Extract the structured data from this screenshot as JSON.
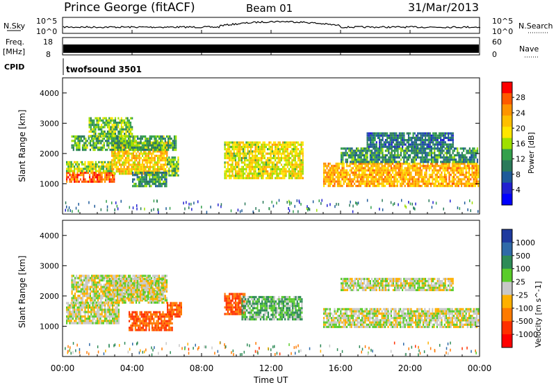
{
  "header": {
    "station": "Prince George (fitACF)",
    "beam": "Beam 01",
    "date": "31/Mar/2013"
  },
  "noise_panel": {
    "left_label": "N.Sky",
    "left_ticks": [
      "10^5",
      "10^0"
    ],
    "right_label": "N.Search",
    "right_ticks": [
      "10^5",
      "10^0"
    ]
  },
  "freq_panel": {
    "left_label_1": "Freq.",
    "left_label_2": "[MHz]",
    "left_ticks": [
      "18",
      "8"
    ],
    "right_label": "Nave",
    "right_ticks": [
      "60",
      "0"
    ]
  },
  "cpid": {
    "label": "CPID",
    "program": "twofsound 3501"
  },
  "chart_data": [
    {
      "type": "heatmap",
      "title": "",
      "ylabel": "Slant Range [km]",
      "xlabel": "",
      "x_range_hours": [
        0,
        24
      ],
      "ylim": [
        0,
        4500
      ],
      "yticks": [
        "4000",
        "3000",
        "2000",
        "1000"
      ],
      "colorbar": {
        "label": "Power [dB]",
        "ticks": [
          "28",
          "24",
          "20",
          "16",
          "12",
          "8",
          "4"
        ],
        "colors": [
          "#ff0000",
          "#ff5a00",
          "#ff9400",
          "#ffbf00",
          "#ffe600",
          "#9fe000",
          "#33a04b",
          "#2a7a5a",
          "#1d5a9a",
          "#2020d0",
          "#0000ff"
        ]
      },
      "echo_regions": [
        {
          "t0": 0.2,
          "t1": 3.0,
          "r0": 1050,
          "r1": 1400,
          "level": 26
        },
        {
          "t0": 0.2,
          "t1": 3.0,
          "r0": 1400,
          "r1": 1750,
          "level": 16
        },
        {
          "t0": 2.8,
          "t1": 6.0,
          "r0": 1300,
          "r1": 2400,
          "level": 20
        },
        {
          "t0": 0.5,
          "t1": 6.5,
          "r0": 2100,
          "r1": 2600,
          "level": 12
        },
        {
          "t0": 1.5,
          "t1": 4.0,
          "r0": 2600,
          "r1": 3200,
          "level": 14
        },
        {
          "t0": 4.0,
          "t1": 6.0,
          "r0": 900,
          "r1": 1400,
          "level": 10
        },
        {
          "t0": 6.0,
          "t1": 6.7,
          "r0": 1300,
          "r1": 1900,
          "level": 14
        },
        {
          "t0": 9.3,
          "t1": 13.8,
          "r0": 1200,
          "r1": 2400,
          "level": 18
        },
        {
          "t0": 15.0,
          "t1": 23.9,
          "r0": 900,
          "r1": 1700,
          "level": 22
        },
        {
          "t0": 16.0,
          "t1": 23.9,
          "r0": 1700,
          "r1": 2200,
          "level": 10
        },
        {
          "t0": 17.5,
          "t1": 22.5,
          "r0": 2200,
          "r1": 2700,
          "level": 8
        }
      ]
    },
    {
      "type": "heatmap",
      "title": "",
      "ylabel": "Slant Range [km]",
      "xlabel": "Time UT",
      "x_range_hours": [
        0,
        24
      ],
      "xticks": [
        "00:00",
        "04:00",
        "08:00",
        "12:00",
        "16:00",
        "20:00",
        "00:00"
      ],
      "ylim": [
        0,
        4500
      ],
      "yticks": [
        "4000",
        "3000",
        "2000",
        "1000"
      ],
      "colorbar": {
        "label": "Velocity [m s^-1]",
        "ticks": [
          "1000",
          "500",
          "100",
          "25",
          "-25",
          "-100",
          "-500",
          "-1000"
        ],
        "colors": [
          "#1e3a9e",
          "#2f6aa8",
          "#2e8b57",
          "#5acc2a",
          "#c8c8c8",
          "#ffb000",
          "#ff7a00",
          "#ff3000",
          "#ff0000"
        ]
      },
      "echo_regions": [
        {
          "t0": 0.2,
          "t1": 3.2,
          "r0": 1100,
          "r1": 1800,
          "level": 0
        },
        {
          "t0": 0.5,
          "t1": 6.0,
          "r0": 1800,
          "r1": 2700,
          "level": 0
        },
        {
          "t0": 2.5,
          "t1": 5.8,
          "r0": 1900,
          "r1": 2600,
          "level": 0
        },
        {
          "t0": 3.8,
          "t1": 6.3,
          "r0": 900,
          "r1": 1500,
          "level": -300
        },
        {
          "t0": 6.0,
          "t1": 6.8,
          "r0": 1300,
          "r1": 1800,
          "level": -300
        },
        {
          "t0": 9.3,
          "t1": 10.5,
          "r0": 1400,
          "r1": 2100,
          "level": -300
        },
        {
          "t0": 10.3,
          "t1": 13.8,
          "r0": 1200,
          "r1": 2000,
          "level": 60
        },
        {
          "t0": 15.0,
          "t1": 23.9,
          "r0": 1000,
          "r1": 1600,
          "level": 0
        },
        {
          "t0": 16.0,
          "t1": 22.5,
          "r0": 2200,
          "r1": 2600,
          "level": 0
        }
      ]
    }
  ]
}
